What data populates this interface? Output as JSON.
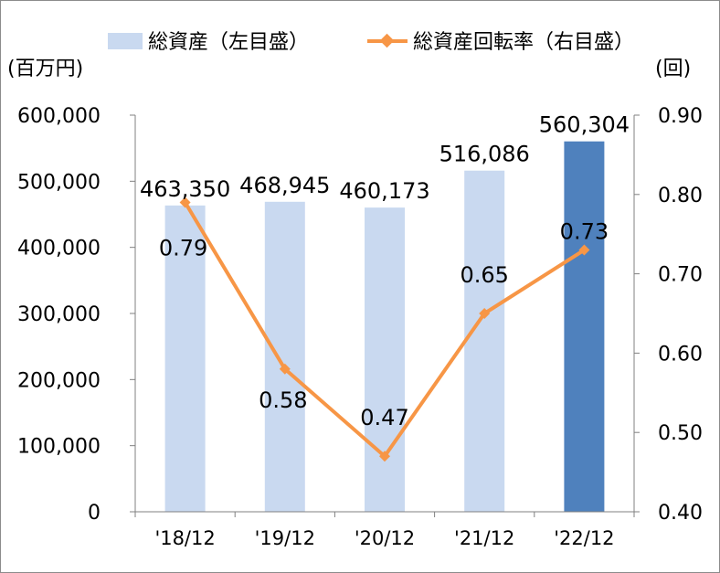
{
  "chart_data": {
    "type": "bar+line",
    "categories": [
      "'18/12",
      "'19/12",
      "'20/12",
      "'21/12",
      "'22/12"
    ],
    "series": [
      {
        "name": "総資産（左目盛）",
        "type": "bar",
        "axis": "left",
        "values": [
          463350,
          468945,
          460173,
          516086,
          560304
        ],
        "labels": [
          "463,350",
          "468,945",
          "460,173",
          "516,086",
          "560,304"
        ],
        "color": "#c9d9f0",
        "highlight_color": "#4f81bd",
        "highlight_index": 4
      },
      {
        "name": "総資産回転率（右目盛）",
        "type": "line",
        "axis": "right",
        "values": [
          0.79,
          0.58,
          0.47,
          0.65,
          0.73
        ],
        "labels": [
          "0.79",
          "0.58",
          "0.47",
          "0.65",
          "0.73"
        ],
        "color": "#f79646",
        "marker": "diamond"
      }
    ],
    "left_axis": {
      "unit": "(百万円)",
      "ylim": [
        0,
        600000
      ],
      "ticks": [
        0,
        100000,
        200000,
        300000,
        400000,
        500000,
        600000
      ],
      "tick_labels": [
        "0",
        "100,000",
        "200,000",
        "300,000",
        "400,000",
        "500,000",
        "600,000"
      ]
    },
    "right_axis": {
      "unit": "(回)",
      "ylim": [
        0.4,
        0.9
      ],
      "ticks": [
        0.4,
        0.5,
        0.6,
        0.7,
        0.8,
        0.9
      ],
      "tick_labels": [
        "0.40",
        "0.50",
        "0.60",
        "0.70",
        "0.80",
        "0.90"
      ]
    },
    "grid": false,
    "legend_position": "top"
  }
}
